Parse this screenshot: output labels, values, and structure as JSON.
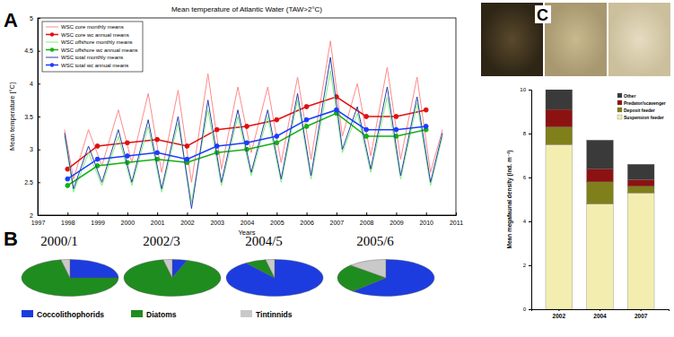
{
  "chart_data": [
    {
      "type": "line",
      "panel_label": "A",
      "title": "Mean temperature of Atlantic Water (TAW>2°C)",
      "x_label": "Years",
      "y_label": "Mean temperature [°C]",
      "xlim": [
        1997,
        2011
      ],
      "xticks": [
        1997,
        1998,
        1999,
        2000,
        2001,
        2002,
        2003,
        2004,
        2005,
        2006,
        2007,
        2008,
        2009,
        2010,
        2011
      ],
      "ylim": [
        2,
        5
      ],
      "yticks": [
        2,
        2.5,
        3,
        3.5,
        4,
        4.5,
        5
      ],
      "grid": false,
      "legend": "upper left",
      "series": [
        {
          "name": "WSC core monthly means",
          "color": "#ff8a8a",
          "line_style": "solid",
          "x": [
            1997.9,
            1998.2,
            1998.7,
            1999.15,
            1999.7,
            2000.15,
            2000.7,
            2001.15,
            2001.7,
            2002.15,
            2002.7,
            2003.15,
            2003.7,
            2004.15,
            2004.7,
            2005.15,
            2005.7,
            2006.15,
            2006.8,
            2007.2,
            2007.7,
            2008.15,
            2008.7,
            2009.15,
            2009.7,
            2010.15,
            2010.55
          ],
          "values": [
            3.3,
            2.55,
            3.3,
            2.75,
            3.6,
            2.8,
            3.85,
            2.65,
            3.9,
            2.5,
            4.15,
            2.7,
            3.95,
            2.95,
            3.95,
            2.8,
            4.1,
            2.85,
            4.65,
            3.2,
            4.0,
            2.9,
            4.25,
            2.85,
            4.1,
            2.65,
            3.3
          ]
        },
        {
          "name": "WSC core wc annual means",
          "color": "#e01010",
          "line_style": "solid",
          "marker": "circle",
          "x": [
            1998,
            1999,
            2000,
            2001,
            2002,
            2003,
            2004,
            2005,
            2006,
            2007,
            2008,
            2009,
            2010
          ],
          "values": [
            2.7,
            3.05,
            3.1,
            3.15,
            3.05,
            3.3,
            3.35,
            3.45,
            3.65,
            3.8,
            3.5,
            3.5,
            3.6
          ]
        },
        {
          "name": "WSC offshore monthly means",
          "color": "#7ff07f",
          "line_style": "solid",
          "x": [
            1997.9,
            1998.2,
            1998.7,
            1999.15,
            1999.7,
            2000.15,
            2000.7,
            2001.15,
            2001.7,
            2002.15,
            2002.7,
            2003.15,
            2003.7,
            2004.15,
            2004.7,
            2005.15,
            2005.7,
            2006.15,
            2006.8,
            2007.2,
            2007.7,
            2008.15,
            2008.7,
            2009.15,
            2009.7,
            2010.15,
            2010.55
          ],
          "values": [
            3.2,
            2.35,
            2.95,
            2.45,
            3.2,
            2.45,
            3.35,
            2.35,
            3.4,
            2.2,
            3.6,
            2.45,
            3.5,
            2.6,
            3.5,
            2.5,
            3.75,
            2.55,
            4.2,
            2.95,
            3.55,
            2.65,
            3.8,
            2.55,
            3.7,
            2.45,
            3.2
          ]
        },
        {
          "name": "WSC offshore wc annual means",
          "color": "#14b014",
          "line_style": "solid",
          "marker": "circle",
          "x": [
            1998,
            1999,
            2000,
            2001,
            2002,
            2003,
            2004,
            2005,
            2006,
            2007,
            2008,
            2009,
            2010
          ],
          "values": [
            2.45,
            2.75,
            2.8,
            2.85,
            2.8,
            2.95,
            3.0,
            3.1,
            3.35,
            3.55,
            3.2,
            3.2,
            3.3
          ]
        },
        {
          "name": "WSC total monthly means",
          "color": "#2a3fa8",
          "line_style": "solid",
          "x": [
            1997.9,
            1998.2,
            1998.7,
            1999.15,
            1999.7,
            2000.15,
            2000.7,
            2001.15,
            2001.7,
            2002.15,
            2002.7,
            2003.15,
            2003.7,
            2004.15,
            2004.7,
            2005.15,
            2005.7,
            2006.15,
            2006.8,
            2007.2,
            2007.7,
            2008.15,
            2008.7,
            2009.15,
            2009.7,
            2010.15,
            2010.55
          ],
          "values": [
            3.25,
            2.4,
            3.05,
            2.5,
            3.3,
            2.5,
            3.45,
            2.4,
            3.5,
            2.1,
            3.75,
            2.5,
            3.6,
            2.65,
            3.6,
            2.55,
            3.85,
            2.6,
            4.4,
            3.0,
            3.65,
            2.7,
            3.95,
            2.6,
            3.8,
            2.5,
            3.25
          ]
        },
        {
          "name": "WSC total wc annual means",
          "color": "#1a3cff",
          "line_style": "solid",
          "marker": "circle",
          "x": [
            1998,
            1999,
            2000,
            2001,
            2002,
            2003,
            2004,
            2005,
            2006,
            2007,
            2008,
            2009,
            2010
          ],
          "values": [
            2.55,
            2.85,
            2.9,
            2.95,
            2.85,
            3.05,
            3.1,
            3.2,
            3.45,
            3.6,
            3.3,
            3.3,
            3.35
          ]
        }
      ]
    },
    {
      "type": "pie",
      "panel_label": "B",
      "title": "2000/1",
      "categories": [
        "Coccolithophorids",
        "Diatoms",
        "Tintinnids"
      ],
      "values": [
        25,
        72,
        3
      ],
      "colors": [
        "#1c3ce0",
        "#1f8c1f",
        "#c9c9c9"
      ]
    },
    {
      "type": "pie",
      "title": "2002/3",
      "categories": [
        "Coccolithophorids",
        "Diatoms",
        "Tintinnids"
      ],
      "values": [
        5,
        92,
        3
      ],
      "colors": [
        "#1c3ce0",
        "#1f8c1f",
        "#c9c9c9"
      ]
    },
    {
      "type": "pie",
      "title": "2004/5",
      "categories": [
        "Coccolithophorids",
        "Diatoms",
        "Tintinnids"
      ],
      "values": [
        90,
        7,
        3
      ],
      "colors": [
        "#1c3ce0",
        "#1f8c1f",
        "#c9c9c9"
      ]
    },
    {
      "type": "pie",
      "title": "2005/6",
      "categories": [
        "Coccolithophorids",
        "Diatoms",
        "Tintinnids"
      ],
      "values": [
        62,
        25,
        13
      ],
      "colors": [
        "#1c3ce0",
        "#1f8c1f",
        "#c9c9c9"
      ]
    },
    {
      "type": "bar",
      "panel_label": "C",
      "stacked": true,
      "legend": "upper right",
      "y_label": "Mean megafaunal density (ind. m⁻²)",
      "categories": [
        "2002",
        "2004",
        "2007"
      ],
      "ylim": [
        0,
        10
      ],
      "yticks": [
        0,
        2,
        4,
        6,
        8,
        10
      ],
      "series": [
        {
          "name": "Suspension feeder",
          "color": "#f3eeb0",
          "values": [
            7.5,
            4.8,
            5.3
          ]
        },
        {
          "name": "Deposit feeder",
          "color": "#7f7f1c",
          "values": [
            0.8,
            1.0,
            0.3
          ]
        },
        {
          "name": "Predator/scavenger",
          "color": "#8c1212",
          "values": [
            0.8,
            0.6,
            0.3
          ]
        },
        {
          "name": "Other",
          "color": "#3a3a3a",
          "values": [
            0.9,
            1.3,
            0.7
          ]
        }
      ]
    }
  ]
}
